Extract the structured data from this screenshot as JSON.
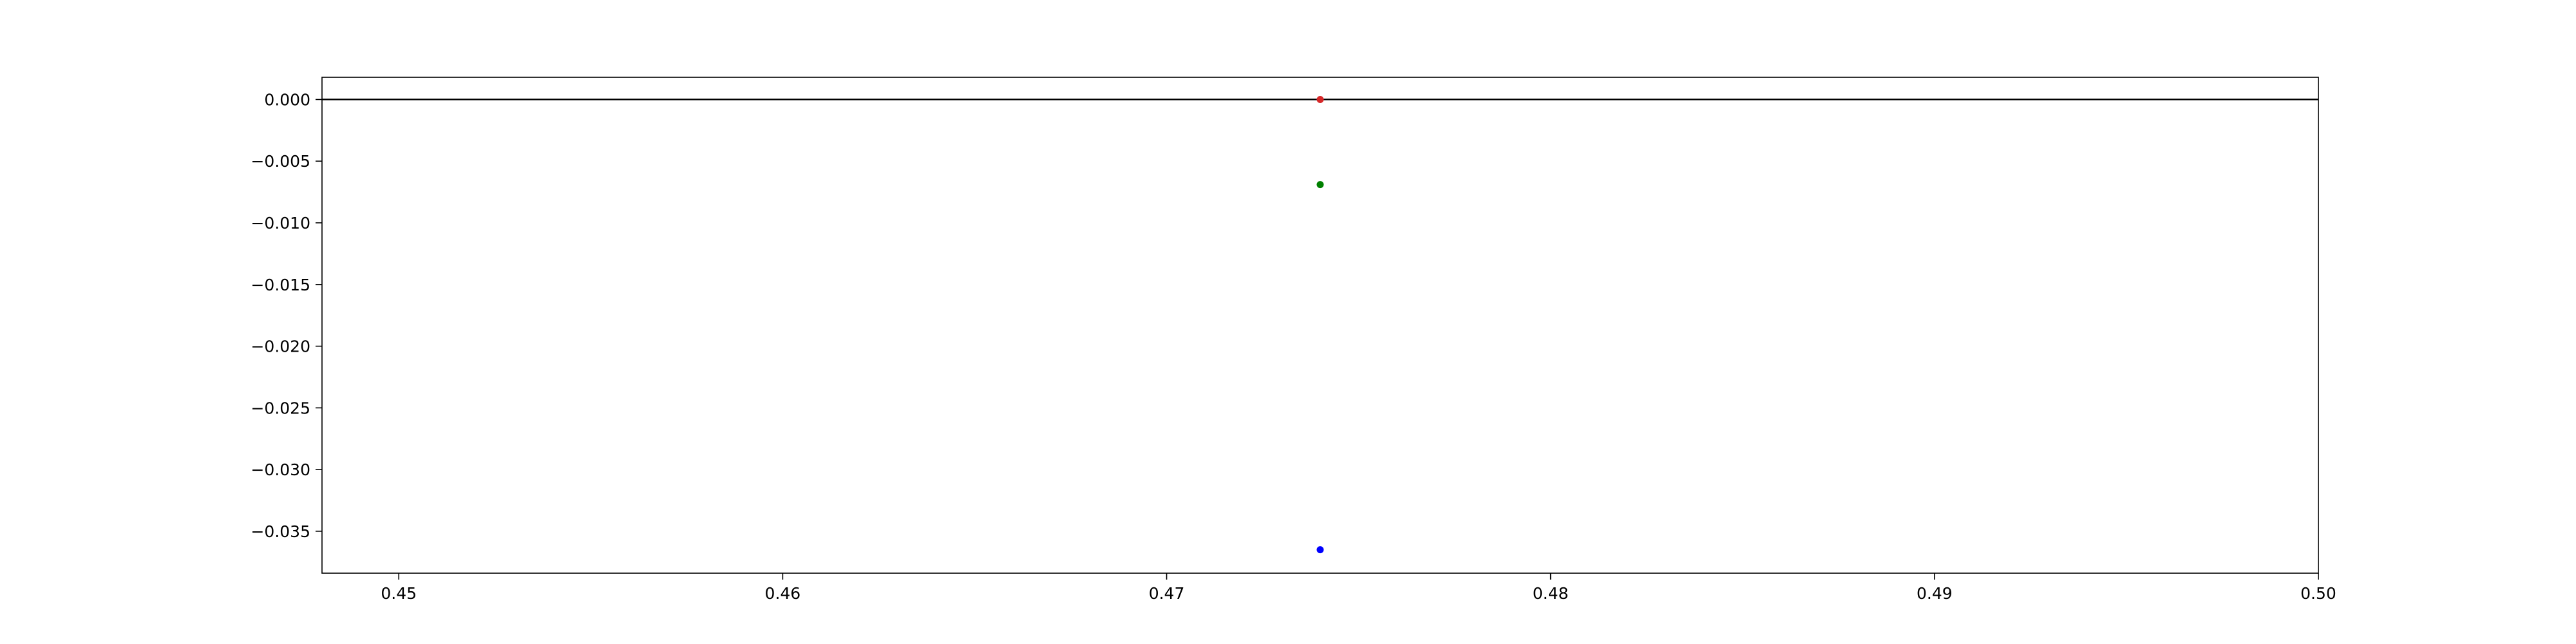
{
  "chart_data": {
    "type": "scatter",
    "title": "",
    "xlabel": "",
    "ylabel": "",
    "xlim": [
      0.448,
      0.5
    ],
    "ylim": [
      -0.0384,
      0.0018
    ],
    "grid": false,
    "legend": "none",
    "x_ticks": [
      {
        "value": 0.45,
        "label": "0.45"
      },
      {
        "value": 0.46,
        "label": "0.46"
      },
      {
        "value": 0.47,
        "label": "0.47"
      },
      {
        "value": 0.48,
        "label": "0.48"
      },
      {
        "value": 0.49,
        "label": "0.49"
      },
      {
        "value": 0.5,
        "label": "0.50"
      }
    ],
    "y_ticks": [
      {
        "value": 0.0,
        "label": "0.000"
      },
      {
        "value": -0.005,
        "label": "−0.005"
      },
      {
        "value": -0.01,
        "label": "−0.010"
      },
      {
        "value": -0.015,
        "label": "−0.015"
      },
      {
        "value": -0.02,
        "label": "−0.020"
      },
      {
        "value": -0.025,
        "label": "−0.025"
      },
      {
        "value": -0.03,
        "label": "−0.030"
      },
      {
        "value": -0.035,
        "label": "−0.035"
      }
    ],
    "reference_line": {
      "y": 0.0,
      "color": "#000000"
    },
    "points": [
      {
        "x": 0.474,
        "y": 0.0,
        "color": "#d62728"
      },
      {
        "x": 0.474,
        "y": -0.0069,
        "color": "#008000"
      },
      {
        "x": 0.474,
        "y": -0.0365,
        "color": "#0000ff"
      }
    ]
  }
}
